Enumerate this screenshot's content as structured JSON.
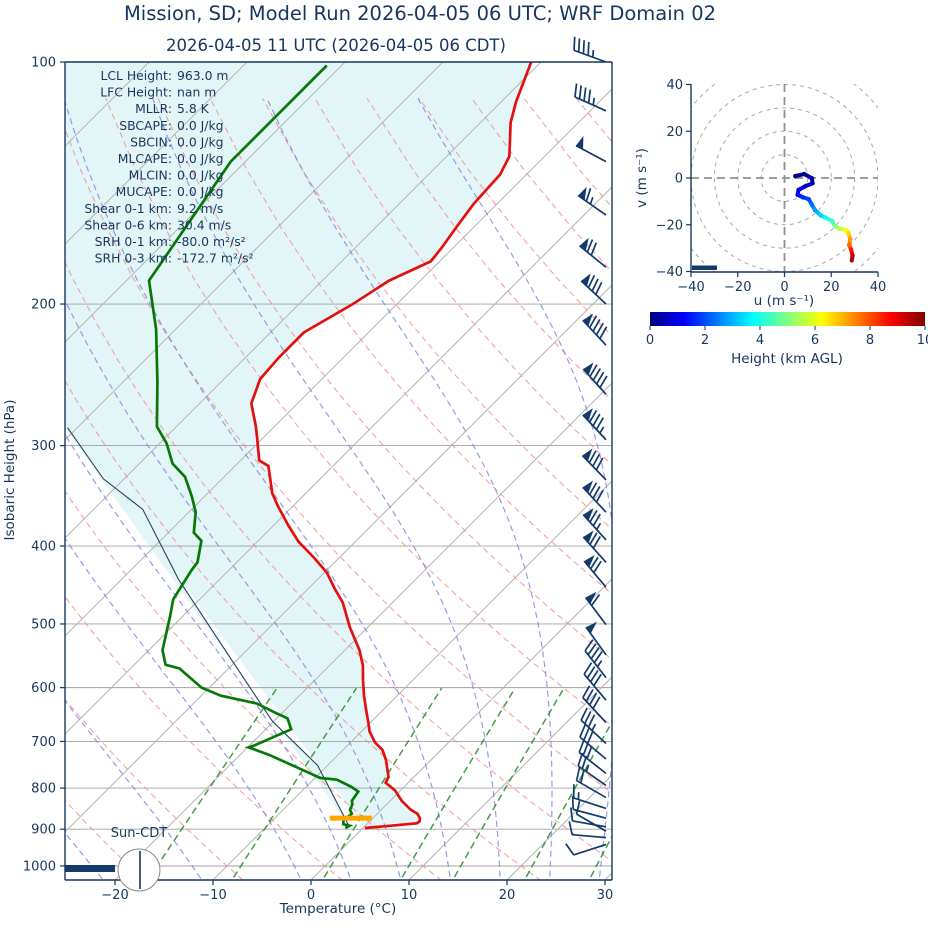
{
  "header": {
    "title": "Mission, SD; Model Run 2026-04-05 06 UTC; WRF Domain 02",
    "subtitle": "2026-04-05 11 UTC  (2026-04-05 06 CDT)"
  },
  "colors": {
    "text_navy": "#17365d",
    "barb_navy": "#123a6b",
    "temperature_red": "#e31010",
    "dewpoint_green": "#077807",
    "parcel_navy": "#27405e",
    "dry_adiabat": "#f28b8b",
    "moist_adiabat": "#8181dd",
    "mixing_ratio": "#2f9331",
    "isotherm_gray": "#b5b5b5",
    "pressure_grid": "#a0a0a0",
    "shade_cyan": "#e2f6f8",
    "lcl_orange": "#ffa500",
    "ring_gray": "#a8a8a8",
    "sun_circle_gray": "#8a8a8a"
  },
  "chart_data": {
    "type": "skewt-logp sounding + hodograph",
    "skewt": {
      "xlabel": "Temperature (°C)",
      "ylabel": "Isobaric Height (hPa)",
      "x_ticks": [
        -20,
        -10,
        0,
        10,
        20,
        30
      ],
      "p_ticks": [
        100,
        200,
        300,
        400,
        500,
        600,
        700,
        800,
        900,
        1000
      ],
      "p_range_hpa": [
        100,
        1061
      ],
      "isotherms_c": {
        "min": -110,
        "max": 40,
        "step": 10
      },
      "dry_adiabats_theta_c": {
        "min": -40,
        "max": 160,
        "step": 10
      },
      "moist_adiabats_t0_c": [
        -60,
        -50,
        -40,
        -30,
        -20,
        -10,
        0,
        5,
        10,
        15,
        20,
        25,
        30,
        35,
        40
      ],
      "mixing_ratios_g_kg": [
        1,
        2,
        4,
        7,
        10,
        16,
        24
      ],
      "sun_label": "Sun-CDT",
      "indices": [
        {
          "label": "LCL Height:",
          "value": "963.0 m"
        },
        {
          "label": "LFC Height:",
          "value": "nan m"
        },
        {
          "label": "MLLR:",
          "value": "5.8 K"
        },
        {
          "label": "SBCAPE:",
          "value": "0.0 J/kg"
        },
        {
          "label": "SBCIN:",
          "value": "0.0 J/kg"
        },
        {
          "label": "MLCAPE:",
          "value": "0.0 J/kg"
        },
        {
          "label": "MLCIN:",
          "value": "0.0 J/kg"
        },
        {
          "label": "MUCAPE:",
          "value": "0.0 J/kg"
        },
        {
          "label": "Shear 0-1 km:",
          "value": "9.2 m/s"
        },
        {
          "label": "Shear 0-6 km:",
          "value": "30.4 m/s"
        },
        {
          "label": "SRH 0-1 km:",
          "value": "-80.0 m²/s²"
        },
        {
          "label": "SRH 0-3 km:",
          "value": "-172.7 m²/s²"
        }
      ],
      "temperature_profile_p_t": [
        [
          100,
          -61.0
        ],
        [
          112,
          -58.5
        ],
        [
          119,
          -56.9
        ],
        [
          131,
          -53.6
        ],
        [
          138,
          -52.7
        ],
        [
          150,
          -52.4
        ],
        [
          160,
          -51.8
        ],
        [
          170,
          -51.2
        ],
        [
          177,
          -50.9
        ],
        [
          187,
          -53.2
        ],
        [
          200,
          -54.5
        ],
        [
          217,
          -56.6
        ],
        [
          233,
          -56.6
        ],
        [
          248,
          -56.3
        ],
        [
          266,
          -54.7
        ],
        [
          284,
          -51.9
        ],
        [
          295,
          -50.4
        ],
        [
          313,
          -48.1
        ],
        [
          318,
          -46.6
        ],
        [
          344,
          -43.4
        ],
        [
          357,
          -41.5
        ],
        [
          377,
          -38.5
        ],
        [
          395,
          -35.8
        ],
        [
          414,
          -32.5
        ],
        [
          432,
          -29.7
        ],
        [
          452,
          -27.3
        ],
        [
          470,
          -25.1
        ],
        [
          505,
          -21.8
        ],
        [
          539,
          -18.5
        ],
        [
          563,
          -16.6
        ],
        [
          587,
          -15.1
        ],
        [
          614,
          -13.4
        ],
        [
          640,
          -11.7
        ],
        [
          665,
          -10.1
        ],
        [
          680,
          -9.2
        ],
        [
          702,
          -7.5
        ],
        [
          717,
          -6.0
        ],
        [
          738,
          -4.6
        ],
        [
          760,
          -3.4
        ],
        [
          775,
          -2.6
        ],
        [
          788,
          -2.3
        ],
        [
          805,
          -0.6
        ],
        [
          830,
          1.2
        ],
        [
          851,
          3.0
        ],
        [
          861,
          4.1
        ],
        [
          872,
          4.8
        ],
        [
          880,
          5.1
        ],
        [
          885,
          5.0
        ],
        [
          890,
          3.0
        ],
        [
          897,
          0.2
        ]
      ],
      "dewpoint_profile_p_t": [
        [
          101,
          -81.5
        ],
        [
          133,
          -81.5
        ],
        [
          187,
          -77.7
        ],
        [
          215,
          -72.0
        ],
        [
          250,
          -66.5
        ],
        [
          284,
          -62.0
        ],
        [
          298,
          -59.3
        ],
        [
          316,
          -56.6
        ],
        [
          328,
          -54.0
        ],
        [
          347,
          -51.3
        ],
        [
          363,
          -49.3
        ],
        [
          385,
          -47.4
        ],
        [
          394,
          -45.8
        ],
        [
          419,
          -44.0
        ],
        [
          429,
          -43.8
        ],
        [
          466,
          -42.7
        ],
        [
          489,
          -41.3
        ],
        [
          539,
          -38.6
        ],
        [
          562,
          -36.8
        ],
        [
          568,
          -35.0
        ],
        [
          600,
          -30.8
        ],
        [
          614,
          -28.0
        ],
        [
          628,
          -23.5
        ],
        [
          646,
          -20.5
        ],
        [
          655,
          -18.9
        ],
        [
          676,
          -17.4
        ],
        [
          708,
          -19.5
        ],
        [
          712,
          -19.9
        ],
        [
          727,
          -17.1
        ],
        [
          760,
          -12.0
        ],
        [
          777,
          -9.5
        ],
        [
          781,
          -7.6
        ],
        [
          797,
          -5.4
        ],
        [
          808,
          -4.2
        ],
        [
          830,
          -3.9
        ],
        [
          838,
          -3.5
        ],
        [
          851,
          -3.2
        ],
        [
          861,
          -2.6
        ],
        [
          870,
          -2.7
        ],
        [
          877,
          -2.8
        ],
        [
          887,
          -2.4
        ],
        [
          891,
          -1.6
        ],
        [
          897,
          -1.8
        ]
      ],
      "parcel_profile_p_t": [
        [
          889,
          -1.8
        ],
        [
          750,
          -11.0
        ],
        [
          660,
          -20.2
        ],
        [
          550,
          -31.0
        ],
        [
          440,
          -44.2
        ],
        [
          360,
          -55.0
        ],
        [
          330,
          -62.1
        ],
        [
          285,
          -71.0
        ]
      ],
      "lcl_marker": {
        "pressure_hpa": 872,
        "t_range_c": [
          -4.4,
          -0.1
        ]
      },
      "wind_barbs_p_kt_dir": [
        [
          100,
          45,
          290
        ],
        [
          115,
          46,
          294
        ],
        [
          133,
          48,
          298
        ],
        [
          155,
          65,
          305
        ],
        [
          180,
          72,
          309
        ],
        [
          200,
          80,
          313
        ],
        [
          225,
          90,
          317
        ],
        [
          259,
          90,
          318
        ],
        [
          295,
          85,
          317
        ],
        [
          331,
          80,
          316
        ],
        [
          363,
          78,
          317
        ],
        [
          393,
          74,
          318
        ],
        [
          419,
          70,
          318
        ],
        [
          450,
          68,
          320
        ],
        [
          501,
          58,
          323
        ],
        [
          546,
          48,
          324
        ],
        [
          583,
          47,
          322
        ],
        [
          622,
          42,
          320
        ],
        [
          663,
          38,
          317
        ],
        [
          704,
          35,
          313
        ],
        [
          736,
          30,
          310
        ],
        [
          767,
          28,
          308
        ],
        [
          794,
          25,
          305
        ],
        [
          822,
          20,
          300
        ],
        [
          848,
          15,
          288
        ],
        [
          872,
          12,
          285
        ],
        [
          894,
          10,
          280
        ],
        [
          905,
          12,
          300
        ],
        [
          922,
          8,
          275
        ],
        [
          940,
          10,
          252
        ]
      ]
    },
    "hodograph": {
      "xlabel": "u (m s⁻¹)",
      "ylabel": "v (m s⁻¹)",
      "u_ticks": [
        -40,
        -20,
        0,
        20,
        40
      ],
      "v_ticks": [
        40,
        20,
        0,
        -20,
        -40
      ],
      "axis_range": [
        -40,
        40
      ],
      "ring_interval_ms": 10,
      "trace_u_v_heightkm": [
        [
          4.6,
          0.8,
          0
        ],
        [
          8.4,
          1.7,
          0.15
        ],
        [
          11.7,
          -0.1,
          0.3
        ],
        [
          12.0,
          -2.3,
          0.5
        ],
        [
          9.1,
          -3.4,
          0.7
        ],
        [
          6.0,
          -5.1,
          1.0
        ],
        [
          5.6,
          -7.2,
          1.3
        ],
        [
          7.7,
          -8.2,
          1.6
        ],
        [
          10.3,
          -9.0,
          1.9
        ],
        [
          11.7,
          -11.4,
          2.3
        ],
        [
          13.1,
          -13.8,
          2.8
        ],
        [
          15.5,
          -16.0,
          3.3
        ],
        [
          17.6,
          -17.0,
          3.8
        ],
        [
          20.4,
          -18.4,
          4.4
        ],
        [
          21.5,
          -20.5,
          5.0
        ],
        [
          23.5,
          -21.7,
          5.5
        ],
        [
          26.3,
          -22.2,
          6.1
        ],
        [
          27.4,
          -23.6,
          6.6
        ],
        [
          28.1,
          -26.2,
          7.2
        ],
        [
          27.7,
          -28.7,
          7.8
        ],
        [
          28.5,
          -30.7,
          8.5
        ],
        [
          29.1,
          -33.2,
          9.2
        ],
        [
          28.8,
          -35.3,
          10
        ]
      ],
      "colorbar": {
        "label": "Height (km AGL)",
        "ticks": [
          0,
          2,
          4,
          6,
          8,
          10
        ],
        "range_km": [
          0,
          10
        ],
        "colormap": "jet"
      }
    }
  }
}
